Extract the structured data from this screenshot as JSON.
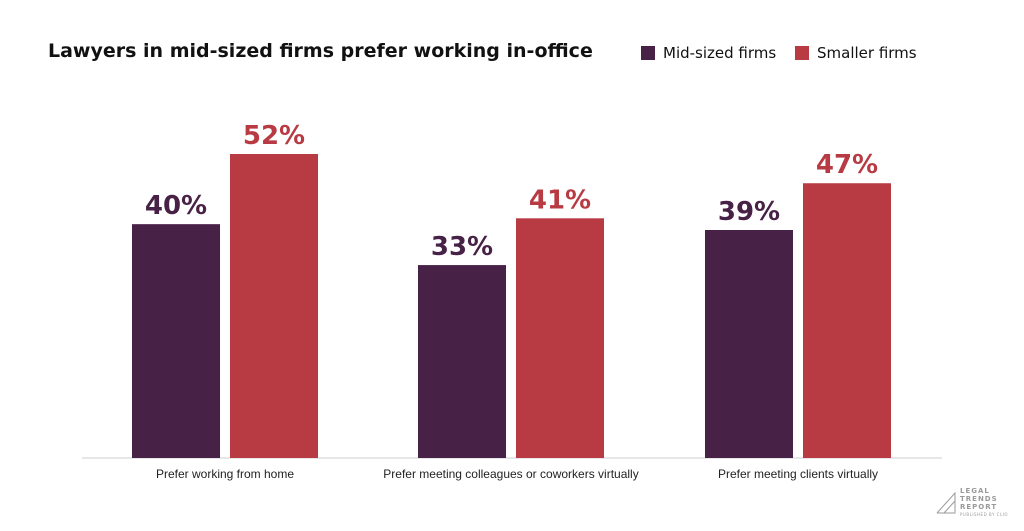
{
  "chart_data": {
    "type": "bar",
    "title": "Lawyers in mid-sized firms prefer working in-office",
    "categories": [
      "Prefer working from home",
      "Prefer meeting colleagues or coworkers virtually",
      "Prefer meeting clients virtually"
    ],
    "series": [
      {
        "name": "Mid-sized firms",
        "values": [
          40,
          33,
          39
        ],
        "color": "#482246"
      },
      {
        "name": "Smaller firms",
        "values": [
          52,
          41,
          47
        ],
        "color": "#b83a42"
      }
    ],
    "value_suffix": "%",
    "ylim": [
      0,
      52
    ],
    "grid": false,
    "legend": "top-right",
    "xlabel": "",
    "ylabel": ""
  },
  "logo": {
    "lines": [
      "LEGAL",
      "TRENDS",
      "REPORT"
    ],
    "subtitle": "PUBLISHED BY CLIO"
  }
}
